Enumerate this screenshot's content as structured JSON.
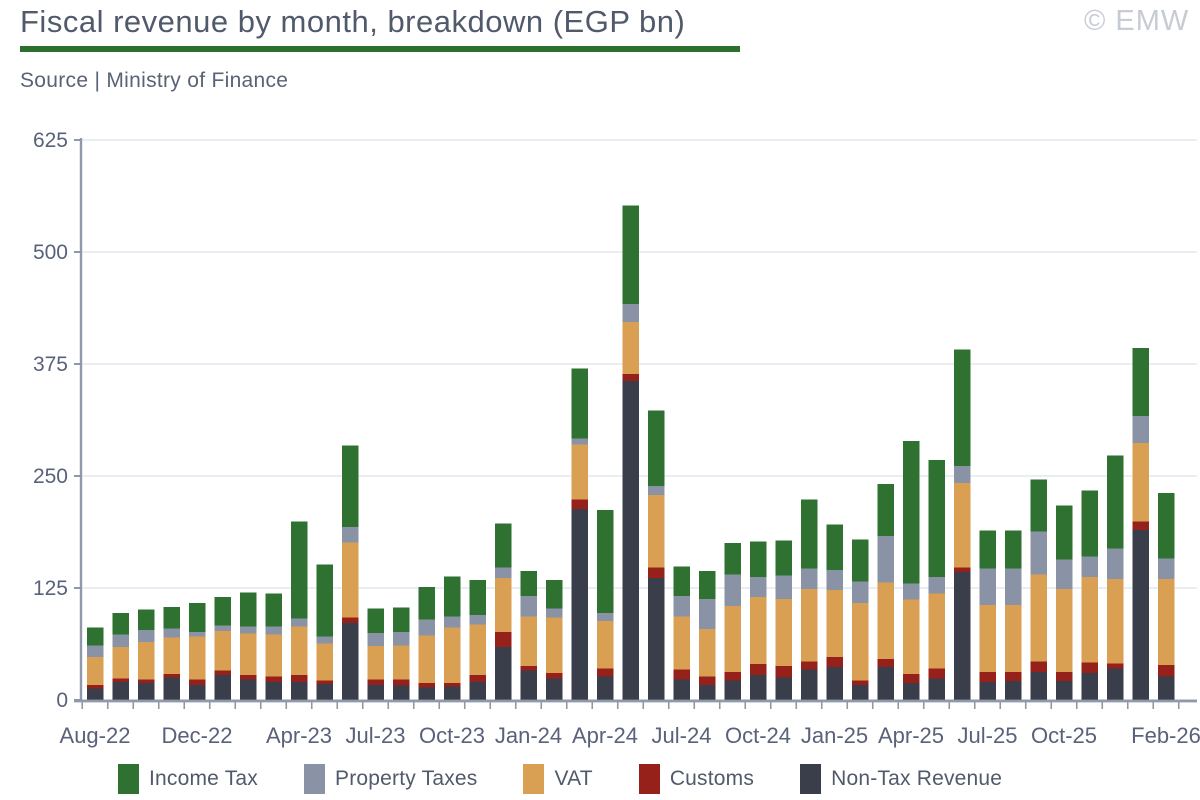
{
  "header": {
    "title": "Fiscal revenue by month, breakdown (EGP bn)",
    "source": "Source | Ministry of Finance",
    "watermark": "© EMW"
  },
  "chart_data": {
    "type": "bar",
    "stacked": true,
    "title": "Fiscal revenue by month, breakdown (EGP bn)",
    "unit": "EGP bn",
    "ylim": [
      0,
      625
    ],
    "yticks": [
      0,
      125,
      250,
      375,
      500,
      625
    ],
    "grid": "horizontal",
    "legend_position": "bottom",
    "categories": [
      "Aug-22",
      "Sep-22",
      "Oct-22",
      "Nov-22",
      "Dec-22",
      "Jan-23",
      "Feb-23",
      "Mar-23",
      "Apr-23",
      "May-23",
      "Jun-23",
      "Jul-23",
      "Aug-23",
      "Sep-23",
      "Oct-23",
      "Nov-23",
      "Dec-23",
      "Jan-24",
      "Feb-24",
      "Mar-24",
      "Apr-24",
      "May-24",
      "Jun-24",
      "Jul-24",
      "Aug-24",
      "Sep-24",
      "Oct-24",
      "Nov-24",
      "Dec-24",
      "Jan-25",
      "Feb-25",
      "Mar-25",
      "Apr-25",
      "May-25",
      "Jun-25",
      "Jul-25",
      "Aug-25",
      "Sep-25",
      "Oct-25",
      "Nov-25",
      "Dec-25",
      "Jan-26",
      "Feb-26"
    ],
    "xtick_labels": [
      "Aug-22",
      "Dec-22",
      "Apr-23",
      "Jul-23",
      "Oct-23",
      "Jan-24",
      "Apr-24",
      "Jul-24",
      "Oct-24",
      "Jan-25",
      "Apr-25",
      "Jul-25",
      "Oct-25",
      "Feb-26"
    ],
    "xtick_indices": [
      0,
      4,
      8,
      11,
      14,
      17,
      20,
      23,
      26,
      29,
      32,
      35,
      38,
      42
    ],
    "series": [
      {
        "name": "Non-Tax Revenue",
        "color": "#3A3E4A",
        "values": [
          13,
          20,
          19,
          25,
          17,
          28,
          23,
          20,
          20,
          18,
          86,
          17,
          16,
          14,
          15,
          20,
          59,
          33,
          24,
          213,
          26,
          356,
          136,
          23,
          17,
          22,
          28,
          25,
          34,
          37,
          17,
          37,
          19,
          24,
          143,
          20,
          21,
          31,
          21,
          30,
          35,
          190,
          26
        ]
      },
      {
        "name": "Customs",
        "color": "#96201A",
        "values": [
          4,
          4,
          4,
          4,
          6,
          5,
          5,
          6,
          8,
          4,
          6,
          6,
          7,
          5,
          4,
          8,
          17,
          5,
          6,
          11,
          9,
          8,
          12,
          11,
          9,
          9,
          12,
          13,
          9,
          11,
          5,
          9,
          10,
          11,
          5,
          11,
          10,
          12,
          10,
          12,
          6,
          9,
          13
        ]
      },
      {
        "name": "VAT",
        "color": "#D99F52",
        "values": [
          31,
          35,
          42,
          41,
          48,
          44,
          46,
          47,
          54,
          41,
          84,
          37,
          38,
          53,
          62,
          56,
          60,
          55,
          62,
          61,
          53,
          58,
          81,
          59,
          53,
          74,
          75,
          75,
          81,
          75,
          86,
          85,
          83,
          84,
          94,
          75,
          75,
          97,
          93,
          95,
          94,
          88,
          96
        ]
      },
      {
        "name": "Property Taxes",
        "color": "#8A93A6",
        "values": [
          13,
          14,
          13,
          10,
          5,
          6,
          8,
          9,
          9,
          8,
          17,
          15,
          15,
          18,
          12,
          11,
          12,
          23,
          10,
          7,
          9,
          20,
          10,
          23,
          34,
          35,
          22,
          26,
          23,
          22,
          24,
          52,
          18,
          18,
          19,
          41,
          41,
          48,
          33,
          23,
          34,
          30,
          23
        ]
      },
      {
        "name": "Income Tax",
        "color": "#2E7130",
        "values": [
          20,
          24,
          23,
          24,
          32,
          32,
          38,
          37,
          108,
          80,
          91,
          27,
          27,
          36,
          45,
          39,
          49,
          28,
          32,
          78,
          115,
          110,
          84,
          33,
          31,
          35,
          40,
          39,
          77,
          51,
          47,
          58,
          159,
          131,
          130,
          42,
          42,
          58,
          60,
          74,
          104,
          76,
          73
        ]
      }
    ],
    "legend": [
      {
        "label": "Income Tax",
        "color": "#2E7130"
      },
      {
        "label": "Property Taxes",
        "color": "#8A93A6"
      },
      {
        "label": "VAT",
        "color": "#D99F52"
      },
      {
        "label": "Customs",
        "color": "#96201A"
      },
      {
        "label": "Non-Tax Revenue",
        "color": "#3A3E4A"
      }
    ],
    "style": {
      "grid_color": "#E3E9F1",
      "spine_color": "#8F99AA",
      "tick_label_color": "#59627A",
      "title_color": "#515A6B",
      "accent_green": "#2D6F2F",
      "watermark_color": "#C7CBD4"
    }
  }
}
